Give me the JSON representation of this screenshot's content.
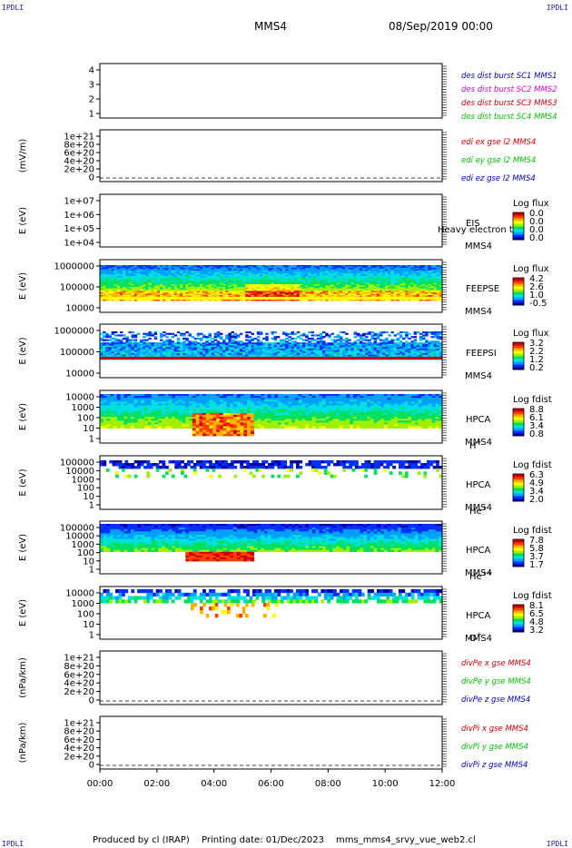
{
  "header": {
    "corner_label": "IPDLI",
    "spacecraft": "MMS4",
    "date_label": "08/Sep/2019 00:00"
  },
  "footer": {
    "produced_by": "Produced by cl (IRAP)",
    "printing_date": "Printing date: 01/Dec/2023",
    "script_name": "mms_mms4_srvy_vue_web2.cl"
  },
  "colors": {
    "rainbow": [
      "#0000a0",
      "#0030ff",
      "#00a0ff",
      "#00e0e0",
      "#00e060",
      "#a0f000",
      "#ffff00",
      "#ffb000",
      "#ff4000",
      "#d00000"
    ],
    "text_red": "#d00000",
    "text_magenta": "#e000e0",
    "text_green": "#00c000",
    "text_blue": "#0000c0"
  },
  "chart_data": [
    {
      "type": "line",
      "ylabel": "",
      "yticks": [
        "4",
        "3",
        "2",
        "1"
      ],
      "ylim": [
        0.5,
        4.5
      ],
      "legend": [
        {
          "text": "des dist burst SC1 MMS1",
          "color": "#0000c0"
        },
        {
          "text": "des dist burst SC2 MMS2",
          "color": "#e000e0"
        },
        {
          "text": "des dist burst SC3 MMS3",
          "color": "#d00000"
        },
        {
          "text": "des dist burst SC4 MMS4",
          "color": "#00c000"
        }
      ]
    },
    {
      "type": "line",
      "ylabel": "(mV/m)",
      "yticks": [
        "1e+21",
        "8e+20",
        "6e+20",
        "4e+20",
        "2e+20",
        "0"
      ],
      "ylim": [
        0,
        1.05e+21
      ],
      "legend": [
        {
          "text": "edi ex gse l2 MMS4",
          "color": "#d00000"
        },
        {
          "text": "edi ey gse l2 MMS4",
          "color": "#00c000"
        },
        {
          "text": "edi ez gse l2 MMS4",
          "color": "#0000c0"
        }
      ]
    },
    {
      "type": "heatmap",
      "ylabel": "E (eV)",
      "yticks": [
        "1e+07",
        "1e+06",
        "1e+05",
        "1e+04"
      ],
      "yscale": "log",
      "ylim": [
        10000.0,
        10000000.0
      ],
      "instrument": "EIS",
      "overlay_text": "Heavy electron to",
      "spacecraft": "MMS4",
      "colorbar_title": "Log flux",
      "colorbar_ticks": [
        "0.0",
        "0.0",
        "0.0",
        "0.0"
      ]
    },
    {
      "type": "heatmap",
      "ylabel": "E (eV)",
      "yticks": [
        "1000000",
        "100000",
        "10000"
      ],
      "yscale": "log",
      "ylim": [
        10000.0,
        1000000.0
      ],
      "instrument": "FEEPSE",
      "spacecraft": "MMS4",
      "colorbar_title": "Log flux",
      "colorbar_ticks": [
        "4.2",
        "2.6",
        "1.0",
        "-0.5"
      ]
    },
    {
      "type": "heatmap",
      "ylabel": "E (eV)",
      "yticks": [
        "1000000",
        "100000",
        "10000"
      ],
      "yscale": "log",
      "ylim": [
        10000.0,
        1000000.0
      ],
      "instrument": "FEEPSI",
      "spacecraft": "MMS4",
      "colorbar_title": "Log flux",
      "colorbar_ticks": [
        "3.2",
        "2.2",
        "1.2",
        "0.2"
      ]
    },
    {
      "type": "heatmap",
      "ylabel": "E (eV)",
      "yticks": [
        "10000",
        "1000",
        "100",
        "10",
        "1"
      ],
      "yscale": "log",
      "ylim": [
        1,
        40000
      ],
      "instrument": "HPCA",
      "spacecraft": "MMS4",
      "species": "H",
      "species_sup": "+",
      "colorbar_title": "Log fdist",
      "colorbar_ticks": [
        "8.8",
        "6.1",
        "3.4",
        "0.8"
      ]
    },
    {
      "type": "heatmap",
      "ylabel": "E (eV)",
      "yticks": [
        "100000",
        "10000",
        "1000",
        "100",
        "10",
        "1"
      ],
      "yscale": "log",
      "ylim": [
        1,
        100000.0
      ],
      "instrument": "HPCA",
      "spacecraft": "MMS4",
      "species": "He",
      "species_sup": "+",
      "colorbar_title": "Log fdist",
      "colorbar_ticks": [
        "6.3",
        "4.9",
        "3.4",
        "2.0"
      ]
    },
    {
      "type": "heatmap",
      "ylabel": "E (eV)",
      "yticks": [
        "100000",
        "10000",
        "1000",
        "100",
        "10",
        "1"
      ],
      "yscale": "log",
      "ylim": [
        1,
        100000.0
      ],
      "instrument": "HPCA",
      "spacecraft": "MMS4",
      "species": "He",
      "species_sup": "++",
      "colorbar_title": "Log fdist",
      "colorbar_ticks": [
        "7.8",
        "5.8",
        "3.7",
        "1.7"
      ]
    },
    {
      "type": "heatmap",
      "ylabel": "E (eV)",
      "yticks": [
        "10000",
        "1000",
        "100",
        "10",
        "1"
      ],
      "yscale": "log",
      "ylim": [
        1,
        40000
      ],
      "instrument": "HPCA",
      "spacecraft": "MMS4",
      "species": "O",
      "species_sup": "+",
      "colorbar_title": "Log fdist",
      "colorbar_ticks": [
        "8.1",
        "6.5",
        "4.8",
        "3.2"
      ]
    },
    {
      "type": "line",
      "ylabel": "(nPa/km)",
      "yticks": [
        "1e+21",
        "8e+20",
        "6e+20",
        "4e+20",
        "2e+20",
        "0"
      ],
      "ylim": [
        0,
        1.05e+21
      ],
      "legend": [
        {
          "text": "divPe x gse MMS4",
          "color": "#d00000"
        },
        {
          "text": "divPe y gse MMS4",
          "color": "#00c000"
        },
        {
          "text": "divPe z gse MMS4",
          "color": "#0000c0"
        }
      ]
    },
    {
      "type": "line",
      "ylabel": "(nPa/km)",
      "yticks": [
        "1e+21",
        "8e+20",
        "6e+20",
        "4e+20",
        "2e+20",
        "0"
      ],
      "ylim": [
        0,
        1.05e+21
      ],
      "legend": [
        {
          "text": "divPi x gse MMS4",
          "color": "#d00000"
        },
        {
          "text": "divPi y gse MMS4",
          "color": "#00c000"
        },
        {
          "text": "divPi z gse MMS4",
          "color": "#0000c0"
        }
      ]
    }
  ],
  "time_axis": {
    "labels": [
      "00:00",
      "02:00",
      "04:00",
      "06:00",
      "08:00",
      "10:00",
      "12:00"
    ],
    "range_hours": [
      0,
      12
    ]
  }
}
